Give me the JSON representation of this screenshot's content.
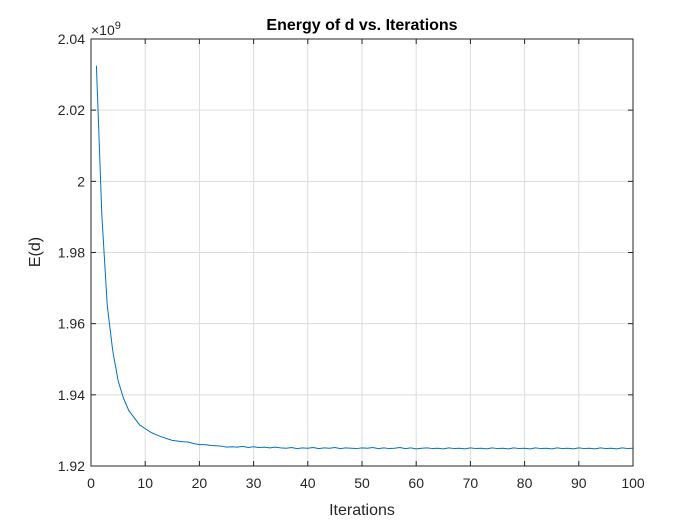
{
  "chart_data": {
    "type": "line",
    "title": "Energy of d vs. Iterations",
    "xlabel": "Iterations",
    "ylabel": "E(d)",
    "exponent_base": "×10",
    "exponent_power": "9",
    "xlim": [
      0,
      100
    ],
    "ylim": [
      1.92,
      2.04
    ],
    "xticks": [
      0,
      10,
      20,
      30,
      40,
      50,
      60,
      70,
      80,
      90,
      100
    ],
    "xtick_labels": [
      "0",
      "10",
      "20",
      "30",
      "40",
      "50",
      "60",
      "70",
      "80",
      "90",
      "100"
    ],
    "yticks": [
      1.92,
      1.94,
      1.96,
      1.98,
      2.0,
      2.02,
      2.04
    ],
    "ytick_labels": [
      "1.92",
      "1.94",
      "1.96",
      "1.98",
      "2",
      "2.02",
      "2.04"
    ],
    "grid": true,
    "line_color": "#0072BD",
    "series": [
      {
        "x": [
          1,
          2,
          3,
          4,
          5,
          6,
          7,
          8,
          9,
          10,
          11,
          12,
          13,
          14,
          15,
          16,
          17,
          18,
          19,
          20,
          21,
          22,
          23,
          24,
          25,
          26,
          27,
          28,
          29,
          30,
          31,
          32,
          33,
          34,
          35,
          36,
          37,
          38,
          39,
          40,
          41,
          42,
          43,
          44,
          45,
          46,
          47,
          48,
          49,
          50,
          51,
          52,
          53,
          54,
          55,
          56,
          57,
          58,
          59,
          60,
          61,
          62,
          63,
          64,
          65,
          66,
          67,
          68,
          69,
          70,
          71,
          72,
          73,
          74,
          75,
          76,
          77,
          78,
          79,
          80,
          81,
          82,
          83,
          84,
          85,
          86,
          87,
          88,
          89,
          90,
          91,
          92,
          93,
          94,
          95,
          96,
          97,
          98,
          99,
          100
        ],
        "values": [
          2.0325,
          1.9905,
          1.965,
          1.9525,
          1.944,
          1.939,
          1.9355,
          1.9335,
          1.9315,
          1.9305,
          1.9295,
          1.9288,
          1.9282,
          1.9277,
          1.9272,
          1.927,
          1.9268,
          1.9267,
          1.9263,
          1.926,
          1.926,
          1.9258,
          1.9257,
          1.9256,
          1.9253,
          1.9254,
          1.9253,
          1.9255,
          1.9252,
          1.9254,
          1.9252,
          1.9253,
          1.9251,
          1.9253,
          1.9251,
          1.925,
          1.9252,
          1.9249,
          1.9251,
          1.925,
          1.9252,
          1.9249,
          1.9251,
          1.925,
          1.9252,
          1.9249,
          1.9251,
          1.925,
          1.9249,
          1.9251,
          1.925,
          1.9252,
          1.9249,
          1.9251,
          1.9249,
          1.925,
          1.9252,
          1.9249,
          1.9251,
          1.9248,
          1.925,
          1.9251,
          1.9249,
          1.925,
          1.9248,
          1.9251,
          1.9249,
          1.925,
          1.9248,
          1.9251,
          1.9249,
          1.925,
          1.9248,
          1.9251,
          1.9249,
          1.925,
          1.9248,
          1.9251,
          1.9249,
          1.925,
          1.9248,
          1.9251,
          1.9249,
          1.925,
          1.9248,
          1.9251,
          1.9249,
          1.925,
          1.9248,
          1.9251,
          1.9249,
          1.925,
          1.9248,
          1.9251,
          1.9249,
          1.925,
          1.9248,
          1.9251,
          1.9249,
          1.925
        ]
      }
    ]
  }
}
